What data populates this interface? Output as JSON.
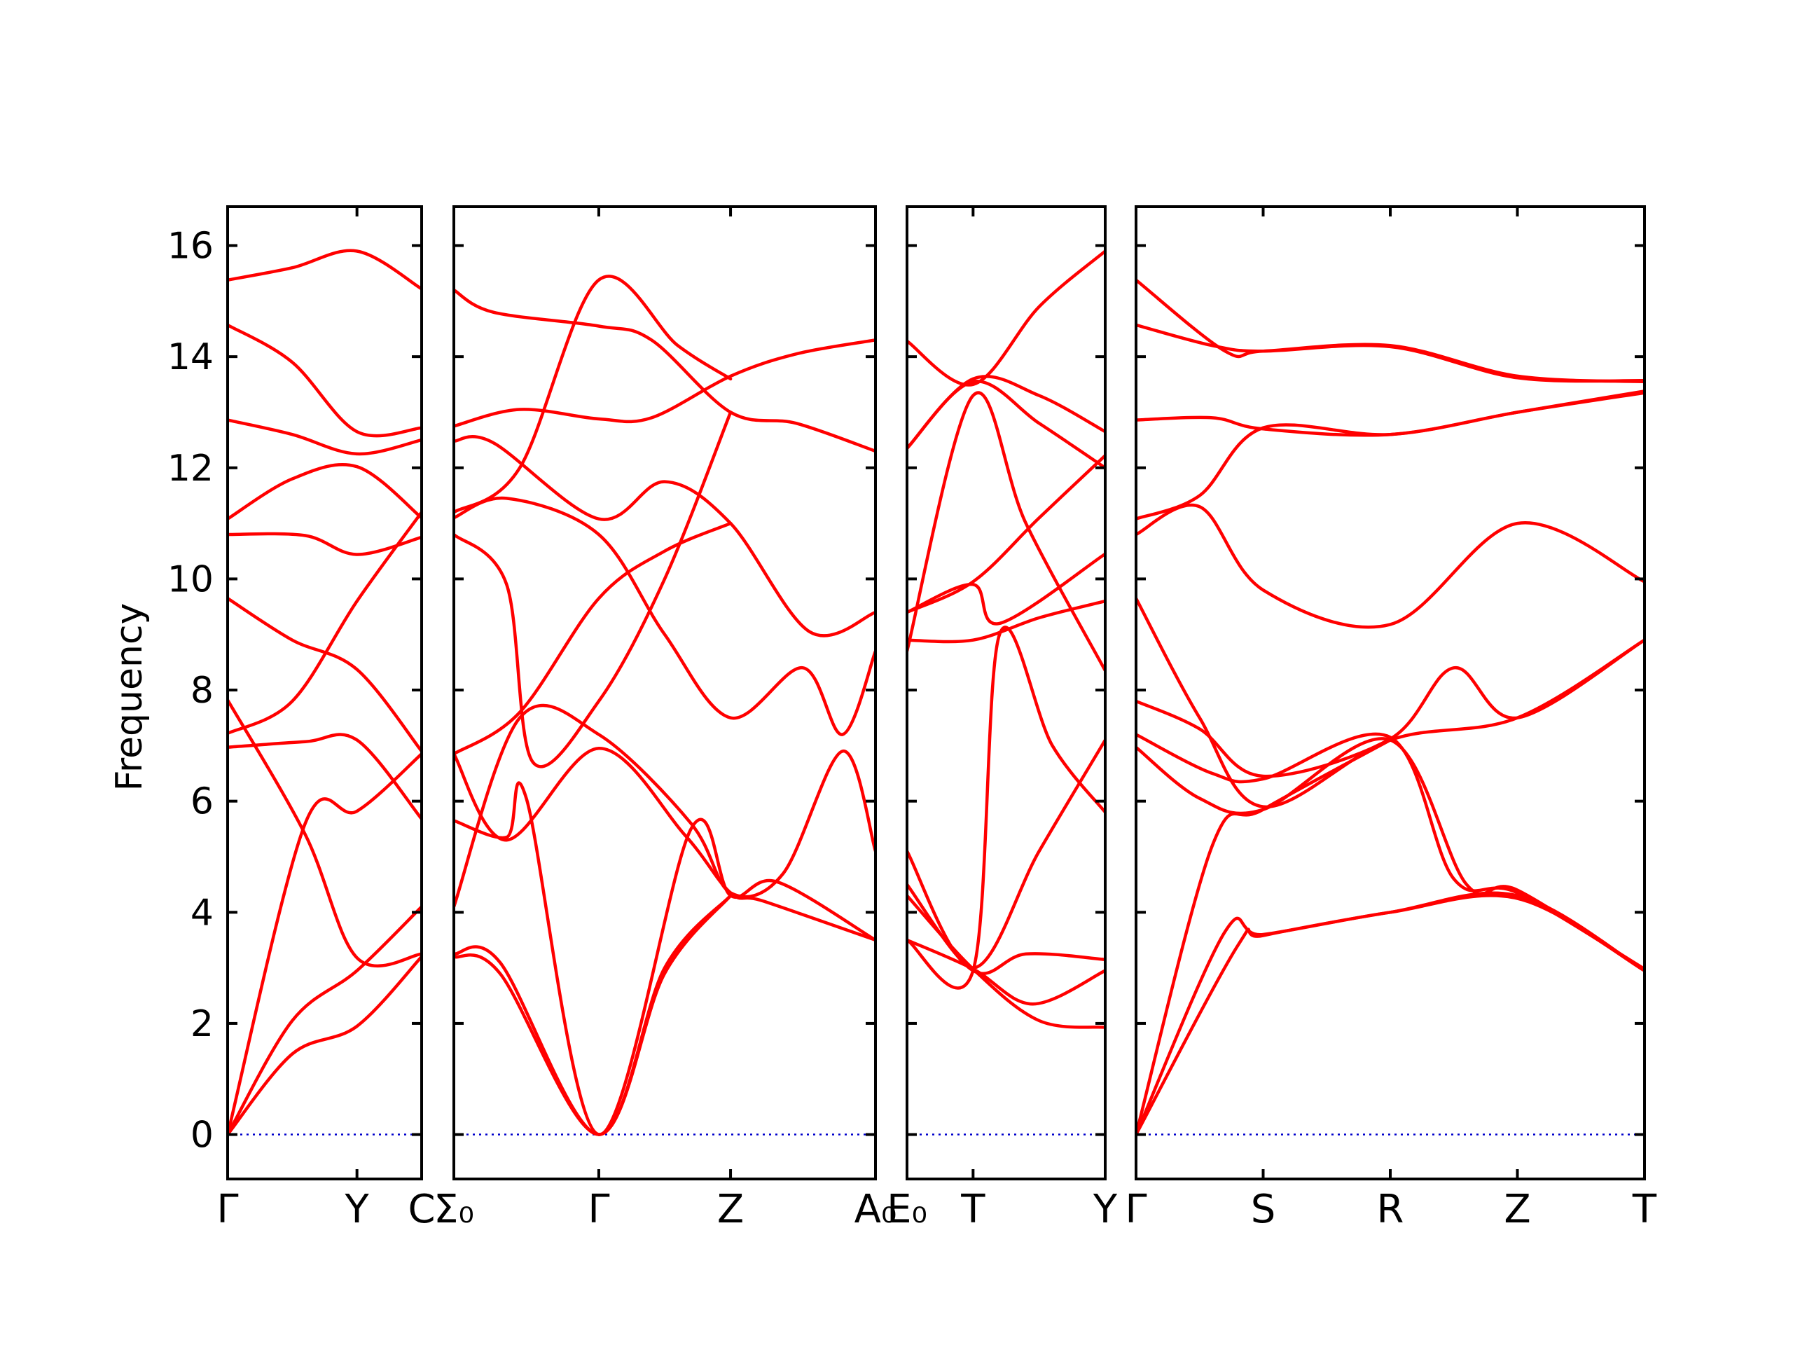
{
  "chart_data": {
    "type": "line",
    "title": "",
    "ylabel": "Frequency",
    "ylim": [
      -0.8,
      16.7
    ],
    "yticks": [
      0,
      2,
      4,
      6,
      8,
      10,
      12,
      14,
      16
    ],
    "grid": false,
    "colors": {
      "bands": "#ff0000",
      "zero_line": "#0000cc",
      "axes": "#000000"
    },
    "panels": [
      {
        "name": "panel-1",
        "xlim": [
          0,
          1.5
        ],
        "points": [
          {
            "label": "Γ",
            "x": 0
          },
          {
            "label": "Y",
            "x": 1.0
          },
          {
            "label": "C",
            "x": 1.5
          }
        ],
        "bands": [
          [
            [
              0,
              15.38
            ],
            [
              0.5,
              15.6
            ],
            [
              1.0,
              15.9
            ],
            [
              1.5,
              15.22
            ]
          ],
          [
            [
              0,
              14.57
            ],
            [
              0.5,
              13.9
            ],
            [
              1.0,
              12.65
            ],
            [
              1.5,
              12.72
            ]
          ],
          [
            [
              0,
              12.86
            ],
            [
              0.5,
              12.6
            ],
            [
              1.0,
              12.25
            ],
            [
              1.5,
              12.5
            ]
          ],
          [
            [
              0,
              11.08
            ],
            [
              0.5,
              11.8
            ],
            [
              1.0,
              12.02
            ],
            [
              1.5,
              11.1
            ]
          ],
          [
            [
              0,
              10.8
            ],
            [
              0.6,
              10.78
            ],
            [
              1.0,
              10.44
            ],
            [
              1.5,
              10.75
            ]
          ],
          [
            [
              0,
              9.65
            ],
            [
              0.5,
              8.9
            ],
            [
              1.0,
              8.37
            ],
            [
              1.5,
              6.9
            ]
          ],
          [
            [
              0,
              7.82
            ],
            [
              0.6,
              5.4
            ],
            [
              1.0,
              3.18
            ],
            [
              1.5,
              3.25
            ]
          ],
          [
            [
              0,
              7.22
            ],
            [
              0.5,
              7.8
            ],
            [
              1.0,
              9.6
            ],
            [
              1.5,
              11.2
            ]
          ],
          [
            [
              0,
              6.97
            ],
            [
              0.6,
              7.07
            ],
            [
              1.0,
              7.1
            ],
            [
              1.5,
              5.68
            ]
          ],
          [
            [
              0,
              0
            ],
            [
              0.6,
              5.6
            ],
            [
              1.0,
              5.82
            ],
            [
              1.5,
              6.85
            ]
          ],
          [
            [
              0,
              0
            ],
            [
              0.5,
              2.05
            ],
            [
              1.0,
              2.95
            ],
            [
              1.5,
              4.1
            ]
          ],
          [
            [
              0,
              0
            ],
            [
              0.5,
              1.45
            ],
            [
              1.0,
              1.95
            ],
            [
              1.5,
              3.2
            ]
          ]
        ]
      },
      {
        "name": "panel-2",
        "xlim": [
          0,
          3.2
        ],
        "points": [
          {
            "label": "Σ₀",
            "x": 0
          },
          {
            "label": "Γ",
            "x": 1.1
          },
          {
            "label": "Z",
            "x": 2.1
          },
          {
            "label": "A₀",
            "x": 3.2
          }
        ],
        "bands": [
          [
            [
              0,
              15.2
            ],
            [
              0.3,
              14.8
            ],
            [
              1.1,
              14.55
            ],
            [
              1.5,
              14.3
            ],
            [
              2.1,
              13.0
            ],
            [
              2.6,
              12.8
            ],
            [
              3.2,
              12.3
            ]
          ],
          [
            [
              0,
              12.75
            ],
            [
              0.5,
              13.05
            ],
            [
              1.1,
              12.88
            ],
            [
              1.5,
              12.9
            ],
            [
              2.1,
              13.65
            ],
            [
              2.6,
              14.05
            ],
            [
              3.2,
              14.3
            ]
          ],
          [
            [
              0,
              11.2
            ],
            [
              0.5,
              12.0
            ],
            [
              1.1,
              15.38
            ],
            [
              1.7,
              14.2
            ],
            [
              2.1,
              13.6
            ]
          ],
          [
            [
              0,
              12.48
            ],
            [
              0.3,
              12.45
            ],
            [
              1.1,
              11.08
            ],
            [
              1.6,
              11.75
            ],
            [
              2.1,
              11.0
            ],
            [
              2.7,
              9.05
            ],
            [
              3.2,
              9.4
            ]
          ],
          [
            [
              0,
              11.1
            ],
            [
              0.4,
              11.45
            ],
            [
              1.1,
              10.8
            ],
            [
              1.6,
              9.0
            ],
            [
              2.1,
              7.5
            ],
            [
              2.65,
              8.4
            ],
            [
              2.95,
              7.2
            ],
            [
              3.2,
              8.7
            ]
          ],
          [
            [
              0,
              10.8
            ],
            [
              0.4,
              9.9
            ],
            [
              0.6,
              6.7
            ],
            [
              1.1,
              7.8
            ],
            [
              1.6,
              10.0
            ],
            [
              2.1,
              13.0
            ]
          ],
          [
            [
              0,
              6.85
            ],
            [
              0.5,
              7.6
            ],
            [
              1.1,
              9.65
            ],
            [
              1.6,
              10.5
            ],
            [
              2.1,
              11.0
            ]
          ],
          [
            [
              0,
              4.1
            ],
            [
              0.5,
              7.5
            ],
            [
              1.1,
              7.2
            ],
            [
              1.8,
              5.6
            ],
            [
              2.1,
              4.35
            ],
            [
              2.5,
              4.7
            ],
            [
              2.95,
              6.9
            ],
            [
              3.2,
              5.1
            ]
          ],
          [
            [
              0,
              5.65
            ],
            [
              0.4,
              5.35
            ],
            [
              0.55,
              6.05
            ],
            [
              1.1,
              0
            ],
            [
              1.8,
              5.5
            ],
            [
              2.1,
              4.3
            ],
            [
              2.45,
              4.55
            ],
            [
              3.2,
              3.5
            ]
          ],
          [
            [
              0,
              6.85
            ],
            [
              0.4,
              5.3
            ],
            [
              1.1,
              6.95
            ],
            [
              1.75,
              5.4
            ],
            [
              2.1,
              4.35
            ],
            [
              2.35,
              4.2
            ],
            [
              3.2,
              3.5
            ]
          ],
          [
            [
              0,
              3.25
            ],
            [
              0.35,
              3.1
            ],
            [
              1.1,
              0
            ],
            [
              1.6,
              3.0
            ],
            [
              2.1,
              4.3
            ]
          ],
          [
            [
              0,
              3.2
            ],
            [
              0.35,
              2.9
            ],
            [
              1.1,
              0
            ],
            [
              1.6,
              2.9
            ],
            [
              2.1,
              4.3
            ]
          ]
        ]
      },
      {
        "name": "panel-3",
        "xlim": [
          0,
          1.5
        ],
        "points": [
          {
            "label": "E₀",
            "x": 0
          },
          {
            "label": "T",
            "x": 0.5
          },
          {
            "label": "Y",
            "x": 1.5
          }
        ],
        "bands": [
          [
            [
              0,
              14.28
            ],
            [
              0.5,
              13.5
            ],
            [
              1.0,
              14.9
            ],
            [
              1.5,
              15.9
            ]
          ],
          [
            [
              0,
              12.35
            ],
            [
              0.5,
              13.6
            ],
            [
              1.0,
              13.3
            ],
            [
              1.5,
              12.65
            ]
          ],
          [
            [
              0,
              12.35
            ],
            [
              0.5,
              13.55
            ],
            [
              1.0,
              12.8
            ],
            [
              1.5,
              12.0
            ]
          ],
          [
            [
              0,
              9.4
            ],
            [
              0.5,
              9.95
            ],
            [
              1.0,
              11.1
            ],
            [
              1.5,
              12.22
            ]
          ],
          [
            [
              0,
              8.7
            ],
            [
              0.5,
              13.3
            ],
            [
              0.9,
              11.0
            ],
            [
              1.5,
              8.35
            ]
          ],
          [
            [
              0,
              9.4
            ],
            [
              0.5,
              9.9
            ],
            [
              0.7,
              9.2
            ],
            [
              1.5,
              10.45
            ]
          ],
          [
            [
              0,
              8.9
            ],
            [
              0.5,
              8.9
            ],
            [
              1.0,
              9.3
            ],
            [
              1.5,
              9.6
            ]
          ],
          [
            [
              0,
              5.1
            ],
            [
              0.5,
              3.0
            ],
            [
              1.0,
              5.1
            ],
            [
              1.5,
              7.1
            ]
          ],
          [
            [
              0,
              3.5
            ],
            [
              0.5,
              2.95
            ],
            [
              0.7,
              9.0
            ],
            [
              1.1,
              7.0
            ],
            [
              1.5,
              5.8
            ]
          ],
          [
            [
              0,
              3.5
            ],
            [
              0.5,
              2.98
            ],
            [
              0.95,
              2.35
            ],
            [
              1.5,
              2.95
            ]
          ],
          [
            [
              0,
              4.5
            ],
            [
              0.5,
              2.95
            ],
            [
              0.9,
              3.25
            ],
            [
              1.5,
              3.15
            ]
          ],
          [
            [
              0,
              4.3
            ],
            [
              0.5,
              2.98
            ],
            [
              1.0,
              2.05
            ],
            [
              1.5,
              1.93
            ]
          ]
        ]
      },
      {
        "name": "panel-4",
        "xlim": [
          0,
          4.0
        ],
        "points": [
          {
            "label": "Γ",
            "x": 0
          },
          {
            "label": "S",
            "x": 1.0
          },
          {
            "label": "R",
            "x": 2.0
          },
          {
            "label": "Z",
            "x": 3.0
          },
          {
            "label": "T",
            "x": 4.0
          }
        ],
        "bands": [
          [
            [
              0,
              15.38
            ],
            [
              0.7,
              14.1
            ],
            [
              1.0,
              14.1
            ],
            [
              2.0,
              14.2
            ],
            [
              3.0,
              13.65
            ],
            [
              4.0,
              13.55
            ]
          ],
          [
            [
              0,
              14.57
            ],
            [
              0.6,
              14.2
            ],
            [
              1.0,
              14.1
            ],
            [
              2.0,
              14.18
            ],
            [
              3.0,
              13.62
            ],
            [
              4.0,
              13.57
            ]
          ],
          [
            [
              0,
              12.86
            ],
            [
              0.6,
              12.9
            ],
            [
              1.0,
              12.7
            ],
            [
              2.0,
              12.6
            ],
            [
              3.0,
              13.0
            ],
            [
              4.0,
              13.35
            ]
          ],
          [
            [
              0,
              11.08
            ],
            [
              0.5,
              11.5
            ],
            [
              1.0,
              12.72
            ],
            [
              2.0,
              12.6
            ],
            [
              3.0,
              13.0
            ],
            [
              4.0,
              13.38
            ]
          ],
          [
            [
              0,
              10.8
            ],
            [
              0.5,
              11.3
            ],
            [
              1.0,
              9.8
            ],
            [
              2.0,
              9.18
            ],
            [
              3.0,
              11.0
            ],
            [
              4.0,
              9.95
            ]
          ],
          [
            [
              0,
              9.65
            ],
            [
              0.5,
              7.5
            ],
            [
              1.0,
              5.9
            ],
            [
              2.0,
              7.1
            ],
            [
              3.0,
              7.5
            ],
            [
              4.0,
              8.9
            ]
          ],
          [
            [
              0,
              7.8
            ],
            [
              0.5,
              7.3
            ],
            [
              1.0,
              6.45
            ],
            [
              2.0,
              7.12
            ],
            [
              2.5,
              8.4
            ],
            [
              3.0,
              7.5
            ],
            [
              4.0,
              8.9
            ]
          ],
          [
            [
              0,
              7.2
            ],
            [
              0.6,
              6.5
            ],
            [
              1.0,
              6.4
            ],
            [
              2.0,
              7.15
            ],
            [
              2.5,
              4.6
            ],
            [
              3.0,
              4.35
            ],
            [
              4.0,
              2.98
            ]
          ],
          [
            [
              0,
              6.97
            ],
            [
              0.5,
              6.05
            ],
            [
              1.0,
              5.85
            ],
            [
              2.0,
              7.1
            ],
            [
              2.6,
              4.5
            ],
            [
              3.0,
              4.4
            ],
            [
              4.0,
              2.95
            ]
          ],
          [
            [
              0,
              0
            ],
            [
              0.6,
              5.2
            ],
            [
              1.0,
              5.85
            ],
            [
              2.0,
              7.1
            ]
          ],
          [
            [
              0,
              0
            ],
            [
              0.7,
              3.65
            ],
            [
              1.0,
              3.6
            ],
            [
              2.0,
              4.0
            ],
            [
              3.0,
              4.25
            ],
            [
              4.0,
              2.95
            ]
          ],
          [
            [
              0,
              0
            ],
            [
              0.8,
              3.4
            ],
            [
              1.0,
              3.58
            ],
            [
              2.0,
              4.0
            ],
            [
              3.0,
              4.3
            ],
            [
              4.0,
              2.95
            ]
          ]
        ]
      }
    ]
  }
}
